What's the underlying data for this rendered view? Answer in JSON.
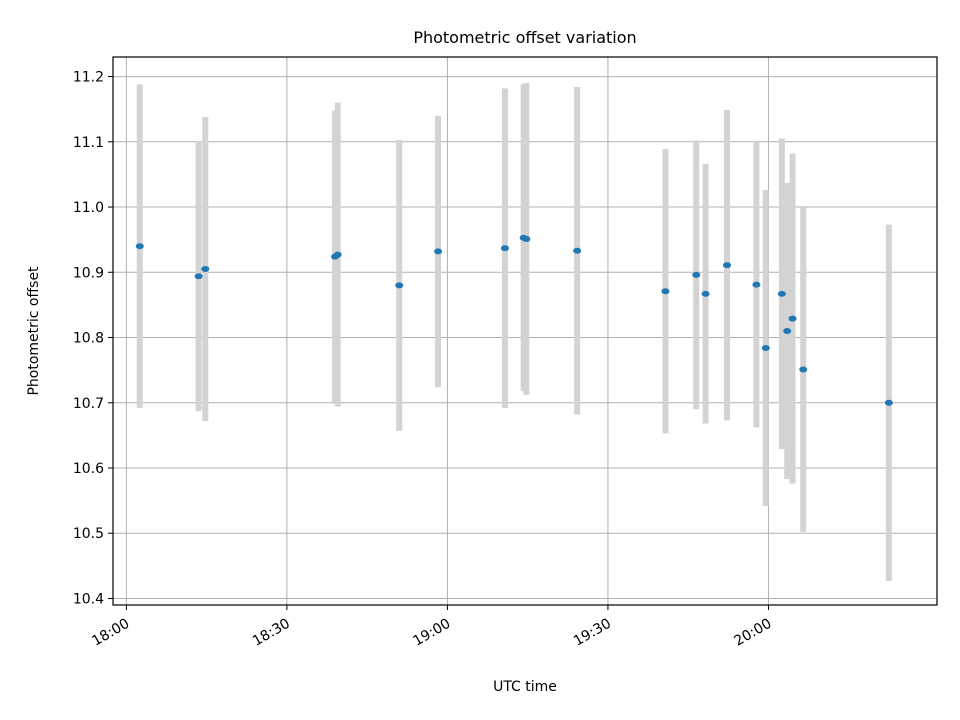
{
  "chart_data": {
    "type": "scatter",
    "title": "Photometric offset variation",
    "xlabel": "UTC time",
    "ylabel": "Photometric offset",
    "x_ticks": [
      "18:00",
      "18:30",
      "19:00",
      "19:30",
      "20:00"
    ],
    "y_ticks": [
      "10.4",
      "10.5",
      "10.6",
      "10.7",
      "10.8",
      "10.9",
      "11.0",
      "11.1",
      "11.2"
    ],
    "xlim": [
      "17:57:30",
      "20:31:30"
    ],
    "ylim": [
      10.39,
      11.23
    ],
    "grid": true,
    "colors": {
      "point": "#1f77b4",
      "errorbar": "#d3d3d3",
      "grid": "#b0b0b0"
    },
    "points": [
      {
        "x": "18:02:30",
        "y": 10.94,
        "err": 0.248
      },
      {
        "x": "18:13:30",
        "y": 10.894,
        "err": 0.207
      },
      {
        "x": "18:14:45",
        "y": 10.905,
        "err": 0.233
      },
      {
        "x": "18:39:00",
        "y": 10.924,
        "err": 0.224
      },
      {
        "x": "18:39:30",
        "y": 10.927,
        "err": 0.233
      },
      {
        "x": "18:51:00",
        "y": 10.88,
        "err": 0.223
      },
      {
        "x": "18:58:15",
        "y": 10.932,
        "err": 0.208
      },
      {
        "x": "19:10:45",
        "y": 10.937,
        "err": 0.245
      },
      {
        "x": "19:14:15",
        "y": 10.953,
        "err": 0.235
      },
      {
        "x": "19:14:45",
        "y": 10.951,
        "err": 0.239
      },
      {
        "x": "19:24:15",
        "y": 10.933,
        "err": 0.251
      },
      {
        "x": "19:40:45",
        "y": 10.871,
        "err": 0.218
      },
      {
        "x": "19:46:30",
        "y": 10.896,
        "err": 0.206
      },
      {
        "x": "19:48:15",
        "y": 10.867,
        "err": 0.199
      },
      {
        "x": "19:52:15",
        "y": 10.911,
        "err": 0.238
      },
      {
        "x": "19:57:45",
        "y": 10.881,
        "err": 0.219
      },
      {
        "x": "19:59:30",
        "y": 10.784,
        "err": 0.242
      },
      {
        "x": "20:02:30",
        "y": 10.867,
        "err": 0.238
      },
      {
        "x": "20:03:30",
        "y": 10.81,
        "err": 0.227
      },
      {
        "x": "20:04:30",
        "y": 10.829,
        "err": 0.253
      },
      {
        "x": "20:06:30",
        "y": 10.751,
        "err": 0.249
      },
      {
        "x": "20:22:30",
        "y": 10.7,
        "err": 0.273
      }
    ]
  }
}
